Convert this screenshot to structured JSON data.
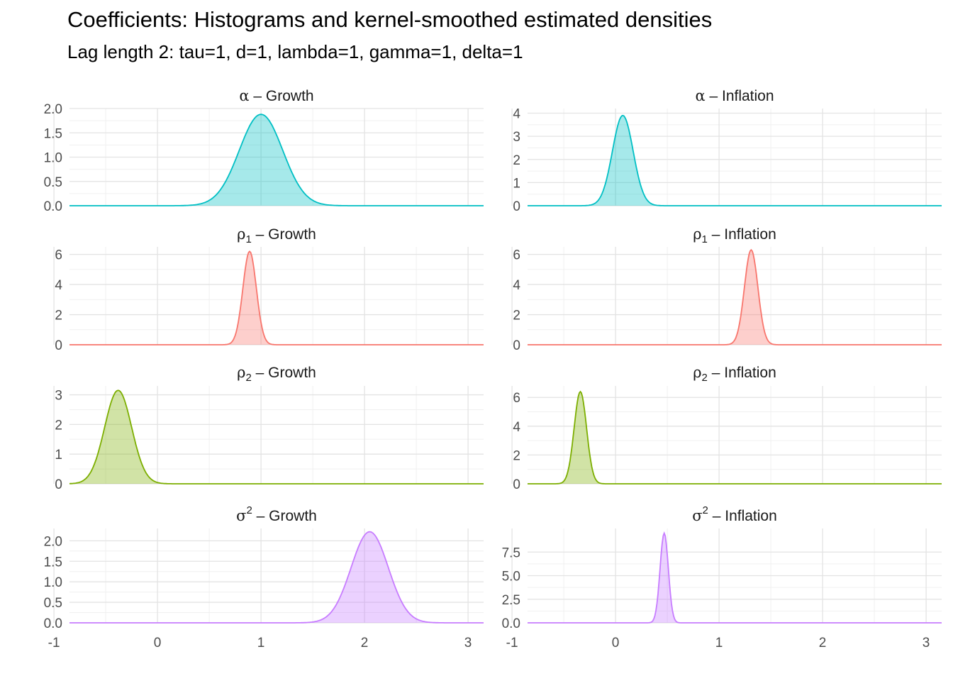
{
  "title": "Coefficients: Histograms and kernel-smoothed estimated densities",
  "subtitle": "Lag length 2: tau=1, d=1, lambda=1, gamma=1, delta=1",
  "chart_data": {
    "type": "area",
    "facet_layout": "4x2",
    "xlim": [
      -0.85,
      3.15
    ],
    "x_ticks": [
      -1,
      0,
      1,
      2,
      3
    ],
    "x_tick_labels": [
      "-1",
      "0",
      "1",
      "2",
      "3"
    ],
    "grid": true,
    "legend": "none",
    "panels": [
      {
        "strip": {
          "sym": "α",
          "sub": "",
          "sup": "",
          "sep": "–",
          "name": "Growth"
        },
        "color": "#00BFC4",
        "ylim": [
          0,
          2.0
        ],
        "y_ticks": [
          0,
          0.5,
          1.0,
          1.5,
          2.0
        ],
        "y_tick_labels": [
          "0.0",
          "0.5",
          "1.0",
          "1.5",
          "2.0"
        ],
        "peaks": [
          {
            "mean": 1.0,
            "sd": 0.21,
            "height": 1.88
          }
        ]
      },
      {
        "strip": {
          "sym": "α",
          "sub": "",
          "sup": "",
          "sep": "–",
          "name": "Inflation"
        },
        "color": "#00BFC4",
        "ylim": [
          0,
          4.2
        ],
        "y_ticks": [
          0,
          1,
          2,
          3,
          4
        ],
        "y_tick_labels": [
          "0",
          "1",
          "2",
          "3",
          "4"
        ],
        "peaks": [
          {
            "mean": 0.07,
            "sd": 0.1,
            "height": 3.9
          }
        ]
      },
      {
        "strip": {
          "sym": "ρ",
          "sub": "1",
          "sup": "",
          "sep": "–",
          "name": "Growth"
        },
        "color": "#F8766D",
        "ylim": [
          0,
          6.5
        ],
        "y_ticks": [
          0,
          2,
          4,
          6
        ],
        "y_tick_labels": [
          "0",
          "2",
          "4",
          "6"
        ],
        "peaks": [
          {
            "mean": 0.89,
            "sd": 0.065,
            "height": 6.2
          }
        ]
      },
      {
        "strip": {
          "sym": "ρ",
          "sub": "1",
          "sup": "",
          "sep": "–",
          "name": "Inflation"
        },
        "color": "#F8766D",
        "ylim": [
          0,
          6.5
        ],
        "y_ticks": [
          0,
          2,
          4,
          6
        ],
        "y_tick_labels": [
          "0",
          "2",
          "4",
          "6"
        ],
        "peaks": [
          {
            "mean": 1.31,
            "sd": 0.065,
            "height": 6.3
          }
        ]
      },
      {
        "strip": {
          "sym": "ρ",
          "sub": "2",
          "sup": "",
          "sep": "–",
          "name": "Growth"
        },
        "color": "#7CAE00",
        "ylim": [
          0,
          3.3
        ],
        "y_ticks": [
          0,
          1,
          2,
          3
        ],
        "y_tick_labels": [
          "0",
          "1",
          "2",
          "3"
        ],
        "peaks": [
          {
            "mean": -0.38,
            "sd": 0.13,
            "height": 3.15
          }
        ]
      },
      {
        "strip": {
          "sym": "ρ",
          "sub": "2",
          "sup": "",
          "sep": "–",
          "name": "Inflation"
        },
        "color": "#7CAE00",
        "ylim": [
          0,
          6.8
        ],
        "y_ticks": [
          0,
          2,
          4,
          6
        ],
        "y_tick_labels": [
          "0",
          "2",
          "4",
          "6"
        ],
        "peaks": [
          {
            "mean": -0.34,
            "sd": 0.06,
            "height": 6.4
          }
        ]
      },
      {
        "strip": {
          "sym": "σ",
          "sub": "",
          "sup": "2",
          "sep": "–",
          "name": "Growth"
        },
        "color": "#C77CFF",
        "ylim": [
          0,
          2.3
        ],
        "y_ticks": [
          0,
          0.5,
          1.0,
          1.5,
          2.0
        ],
        "y_tick_labels": [
          "0.0",
          "0.5",
          "1.0",
          "1.5",
          "2.0"
        ],
        "peaks": [
          {
            "mean": 2.05,
            "sd": 0.18,
            "height": 2.22
          }
        ]
      },
      {
        "strip": {
          "sym": "σ",
          "sub": "",
          "sup": "2",
          "sep": "–",
          "name": "Inflation"
        },
        "color": "#C77CFF",
        "ylim": [
          0,
          10.0
        ],
        "y_ticks": [
          0,
          2.5,
          5.0,
          7.5
        ],
        "y_tick_labels": [
          "0.0",
          "2.5",
          "5.0",
          "7.5"
        ],
        "peaks": [
          {
            "mean": 0.47,
            "sd": 0.04,
            "height": 9.5
          }
        ]
      }
    ]
  }
}
